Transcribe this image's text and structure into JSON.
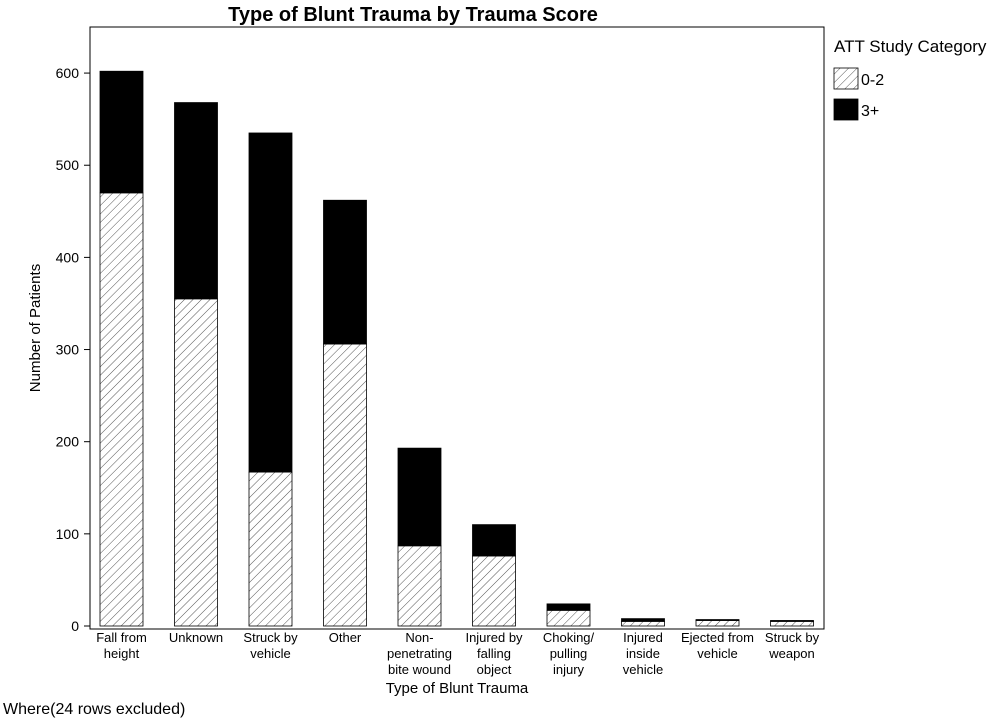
{
  "chart_data": {
    "type": "bar",
    "stacked": true,
    "title": "Type of Blunt Trauma by Trauma Score",
    "xlabel": "Type of Blunt Trauma",
    "ylabel": "Number of Patients",
    "ylim": [
      0,
      650
    ],
    "yticks": [
      0,
      100,
      200,
      300,
      400,
      500,
      600
    ],
    "categories": [
      [
        "Fall from",
        "height"
      ],
      [
        "Unknown"
      ],
      [
        "Struck by",
        "vehicle"
      ],
      [
        "Other"
      ],
      [
        "Non-",
        "penetrating",
        "bite wound"
      ],
      [
        "Injured by",
        "falling",
        "object"
      ],
      [
        "Choking/",
        "pulling",
        "injury"
      ],
      [
        "Injured",
        "inside",
        "vehicle"
      ],
      [
        "Ejected from",
        "vehicle"
      ],
      [
        "Struck by",
        "weapon"
      ]
    ],
    "series": [
      {
        "name": "0-2",
        "pattern": "hatch",
        "values": [
          470,
          355,
          167,
          306,
          87,
          76,
          17,
          5,
          6,
          5
        ]
      },
      {
        "name": "3+",
        "color": "#000000",
        "values": [
          132,
          213,
          368,
          156,
          106,
          34,
          7,
          3,
          1,
          1
        ]
      }
    ],
    "legend": {
      "title": "ATT Study Category",
      "position": "top-right"
    },
    "grid": false
  },
  "footnote": "Where(24 rows excluded)"
}
